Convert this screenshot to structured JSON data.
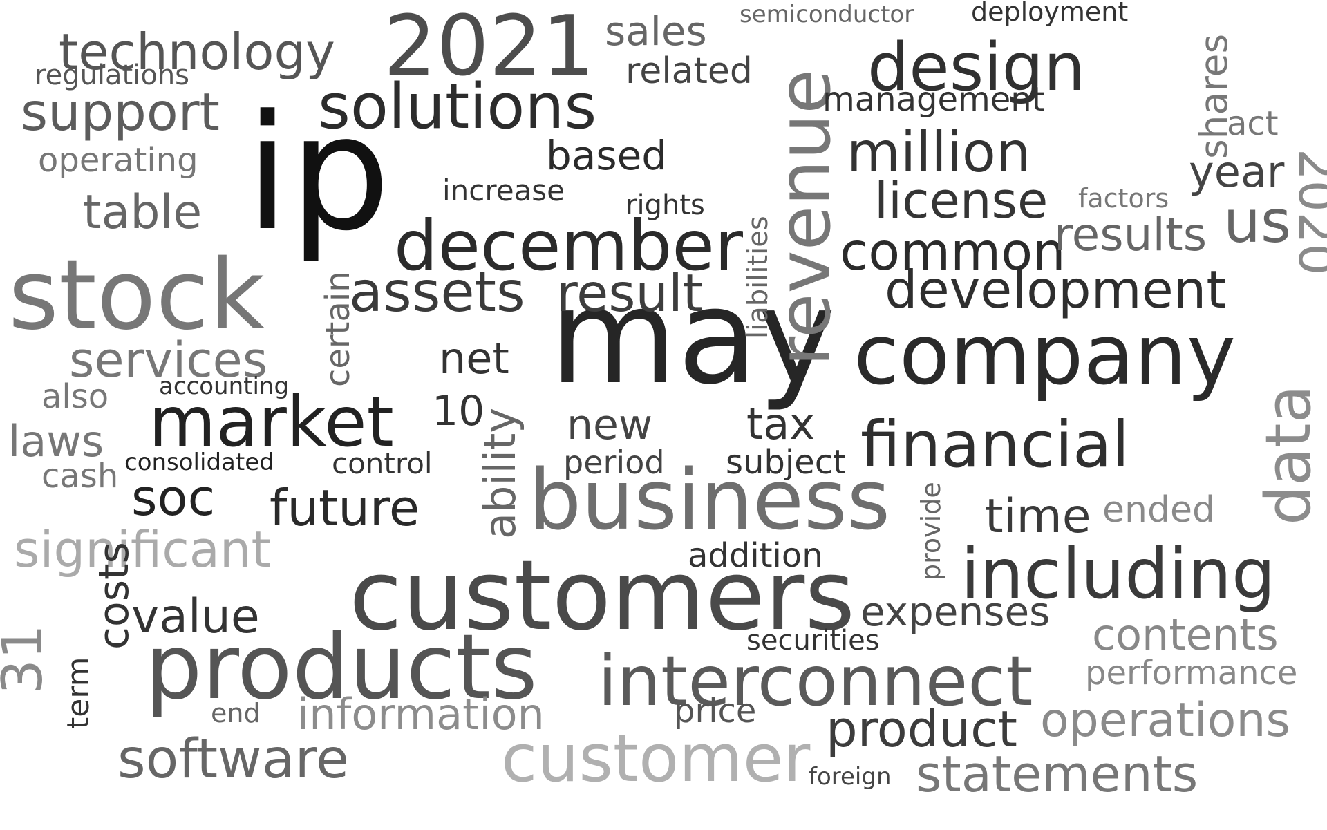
{
  "words": [
    {
      "t": "may",
      "c": "#262626"
    },
    {
      "t": "ip",
      "c": "#111111"
    },
    {
      "t": "company",
      "c": "#2a2a2a"
    },
    {
      "t": "customers",
      "c": "#4a4a4a"
    },
    {
      "t": "business",
      "c": "#6e6e6e"
    },
    {
      "t": "products",
      "c": "#555555"
    },
    {
      "t": "stock",
      "c": "#777777"
    },
    {
      "t": "interconnect",
      "c": "#5a5a5a"
    },
    {
      "t": "december",
      "c": "#2b2b2b"
    },
    {
      "t": "2021",
      "c": "#4d4d4d"
    },
    {
      "t": "revenue",
      "c": "#777777"
    },
    {
      "t": "market",
      "c": "#222222"
    },
    {
      "t": "design",
      "c": "#303030"
    },
    {
      "t": "customer",
      "c": "#b0b0b0"
    },
    {
      "t": "financial",
      "c": "#2f2f2f"
    },
    {
      "t": "including",
      "c": "#3a3a3a"
    },
    {
      "t": "data",
      "c": "#8c8c8c"
    },
    {
      "t": "solutions",
      "c": "#2c2c2c"
    },
    {
      "t": "technology",
      "c": "#555555"
    },
    {
      "t": "software",
      "c": "#666666"
    },
    {
      "t": "assets",
      "c": "#3a3a3a"
    },
    {
      "t": "development",
      "c": "#2e2e2e"
    },
    {
      "t": "million",
      "c": "#333333"
    },
    {
      "t": "result",
      "c": "#3d3d3d"
    },
    {
      "t": "support",
      "c": "#5c5c5c"
    },
    {
      "t": "statements",
      "c": "#777777"
    },
    {
      "t": "product",
      "c": "#3c3c3c"
    },
    {
      "t": "operations",
      "c": "#8a8a8a"
    },
    {
      "t": "common",
      "c": "#2b2b2b"
    },
    {
      "t": "license",
      "c": "#353535"
    },
    {
      "t": "significant",
      "c": "#aaaaaa"
    },
    {
      "t": "services",
      "c": "#777777"
    },
    {
      "t": "soc",
      "c": "#222222"
    },
    {
      "t": "future",
      "c": "#2a2a2a"
    },
    {
      "t": "value",
      "c": "#333333"
    },
    {
      "t": "results",
      "c": "#666666"
    },
    {
      "t": "table",
      "c": "#666666"
    },
    {
      "t": "information",
      "c": "#8c8c8c"
    },
    {
      "t": "contents",
      "c": "#888888"
    },
    {
      "t": "us",
      "c": "#666666"
    },
    {
      "t": "2020",
      "c": "#8a8a8a"
    },
    {
      "t": "time",
      "c": "#3a3a3a"
    },
    {
      "t": "laws",
      "c": "#777777"
    },
    {
      "t": "net",
      "c": "#333333"
    },
    {
      "t": "tax",
      "c": "#333333"
    },
    {
      "t": "new",
      "c": "#444444"
    },
    {
      "t": "ability",
      "c": "#666666"
    },
    {
      "t": "costs",
      "c": "#333333"
    },
    {
      "t": "shares",
      "c": "#777777"
    },
    {
      "t": "expenses",
      "c": "#444444"
    },
    {
      "t": "based",
      "c": "#2b2b2b"
    },
    {
      "t": "sales",
      "c": "#666666"
    },
    {
      "t": "related",
      "c": "#444444"
    },
    {
      "t": "management",
      "c": "#333333"
    },
    {
      "t": "year",
      "c": "#444444"
    },
    {
      "t": "operating",
      "c": "#777777"
    },
    {
      "t": "addition",
      "c": "#333333"
    },
    {
      "t": "price",
      "c": "#555555"
    },
    {
      "t": "deployment",
      "c": "#333333"
    },
    {
      "t": "liabilities",
      "c": "#666666"
    },
    {
      "t": "certain",
      "c": "#666666"
    },
    {
      "t": "regulations",
      "c": "#555555"
    },
    {
      "t": "performance",
      "c": "#888888"
    },
    {
      "t": "31",
      "c": "#8a8a8a"
    },
    {
      "t": "10",
      "c": "#333333"
    },
    {
      "t": "period",
      "c": "#444444"
    },
    {
      "t": "subject",
      "c": "#333333"
    },
    {
      "t": "cash",
      "c": "#777777"
    },
    {
      "t": "also",
      "c": "#777777"
    },
    {
      "t": "ended",
      "c": "#8a8a8a"
    },
    {
      "t": "act",
      "c": "#777777"
    },
    {
      "t": "increase",
      "c": "#333333"
    },
    {
      "t": "control",
      "c": "#333333"
    },
    {
      "t": "rights",
      "c": "#333333"
    },
    {
      "t": "term",
      "c": "#333333"
    },
    {
      "t": "consolidated",
      "c": "#222222"
    },
    {
      "t": "accounting",
      "c": "#333333"
    },
    {
      "t": "securities",
      "c": "#333333"
    },
    {
      "t": "foreign",
      "c": "#444444"
    },
    {
      "t": "factors",
      "c": "#777777"
    },
    {
      "t": "end",
      "c": "#666666"
    },
    {
      "t": "provide",
      "c": "#666666"
    },
    {
      "t": "semiconductor",
      "c": "#666666"
    }
  ]
}
